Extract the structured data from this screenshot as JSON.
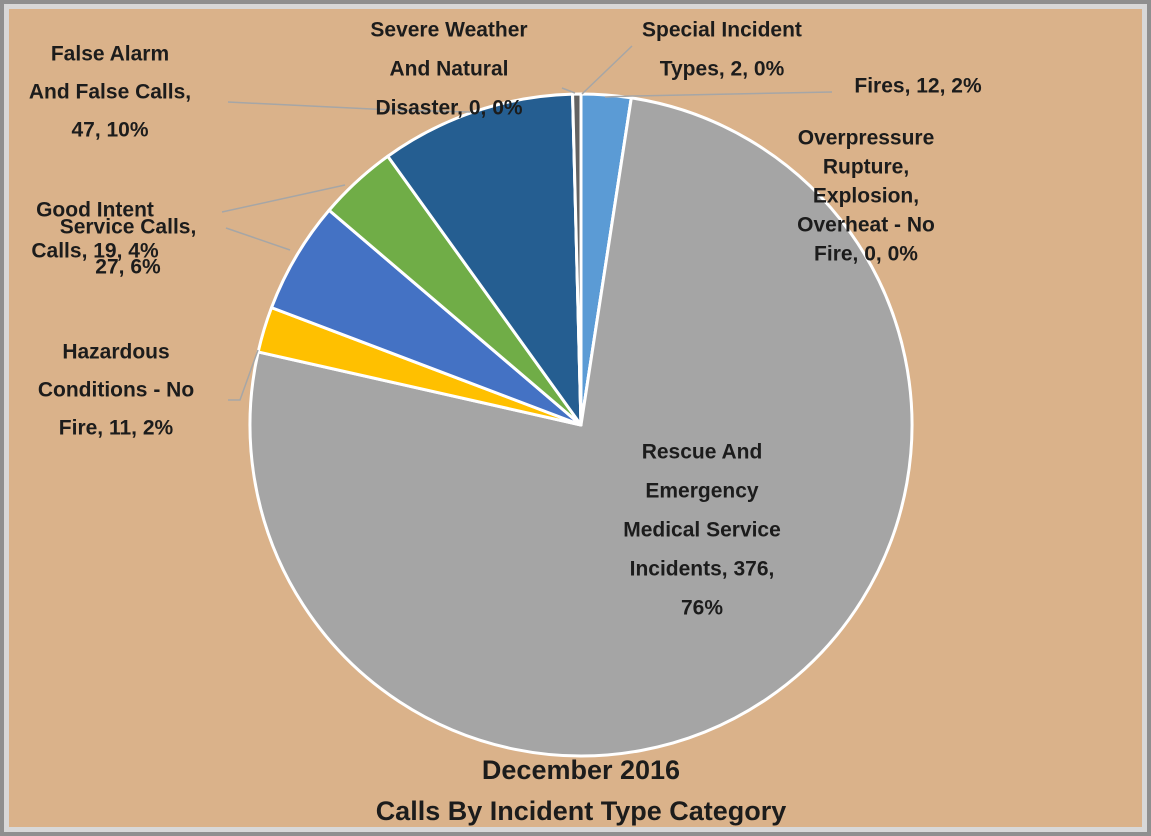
{
  "chart_data": {
    "type": "pie",
    "title": [
      "December 2016",
      "Calls By Incident Type Category"
    ],
    "labels": [
      [
        "Fires, 12, 2%"
      ],
      [
        "Overpressure",
        "Rupture,",
        "Explosion,",
        "Overheat - No",
        "Fire, 0, 0%"
      ],
      [
        "Rescue And",
        "Emergency",
        "Medical Service",
        "Incidents, 376,",
        "76%"
      ],
      [
        "Hazardous",
        "Conditions - No",
        "Fire, 11, 2%"
      ],
      [
        "Service Calls,",
        "27, 6%"
      ],
      [
        "Good Intent",
        "Calls, 19, 4%"
      ],
      [
        "False Alarm",
        "And False Calls,",
        "47, 10%"
      ],
      [
        "Severe Weather",
        "And Natural",
        "Disaster, 0, 0%"
      ],
      [
        "Special Incident",
        "Types, 2, 0%"
      ]
    ],
    "values": [
      12,
      0,
      376,
      11,
      27,
      19,
      47,
      0,
      2
    ],
    "colors": [
      "#5b9bd5",
      "#ed7d31",
      "#a5a5a5",
      "#ffc000",
      "#4472c4",
      "#70ad47",
      "#255e91",
      "#9e480e",
      "#636363"
    ]
  }
}
